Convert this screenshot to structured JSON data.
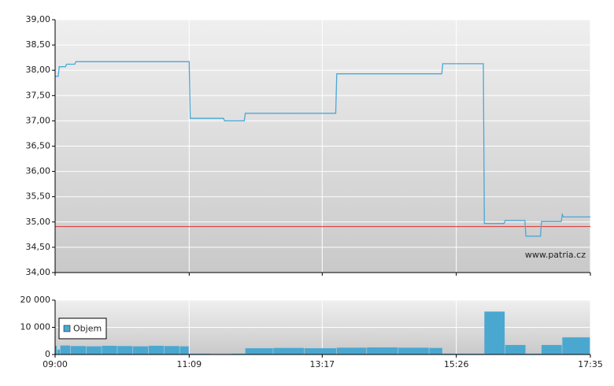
{
  "chart_data": [
    {
      "type": "line",
      "color": "#4aa8d8",
      "source": "www.patria.cz",
      "reference_line": 34.91,
      "reference_color": "#e03030",
      "x": [
        "09:00",
        "09:03",
        "09:04",
        "09:10",
        "09:11",
        "09:19",
        "09:20",
        "11:09",
        "11:10",
        "11:42",
        "11:43",
        "12:02",
        "12:03",
        "13:30",
        "13:31",
        "15:12",
        "15:13",
        "15:52",
        "15:53",
        "16:12",
        "16:13",
        "16:32",
        "16:33",
        "16:47",
        "16:48",
        "17:07",
        "17:08",
        "17:09",
        "17:35"
      ],
      "values": [
        37.88,
        37.88,
        38.07,
        38.07,
        38.12,
        38.12,
        38.17,
        38.17,
        37.05,
        37.05,
        37.0,
        37.0,
        37.15,
        37.15,
        37.93,
        37.93,
        38.13,
        38.13,
        34.97,
        34.97,
        35.03,
        35.03,
        34.72,
        34.72,
        35.01,
        35.01,
        35.15,
        35.1,
        35.1
      ],
      "xlim": [
        "09:00",
        "17:35"
      ],
      "ylim": [
        34,
        39
      ],
      "yticks": [
        {
          "value": 34,
          "label": "34,00"
        },
        {
          "value": 34.5,
          "label": "34,50"
        },
        {
          "value": 35,
          "label": "35,00"
        },
        {
          "value": 35.5,
          "label": "35,50"
        },
        {
          "value": 36,
          "label": "36,00"
        },
        {
          "value": 36.5,
          "label": "36,50"
        },
        {
          "value": 37,
          "label": "37,00"
        },
        {
          "value": 37.5,
          "label": "37,50"
        },
        {
          "value": 38,
          "label": "38,00"
        },
        {
          "value": 38.5,
          "label": "38,50"
        },
        {
          "value": 39,
          "label": "39,00"
        }
      ],
      "grid": true
    },
    {
      "type": "bar",
      "legend": "lower-left",
      "x": [
        "09:00",
        "09:02",
        "09:05",
        "09:15",
        "09:30",
        "09:45",
        "10:00",
        "10:15",
        "10:30",
        "10:45",
        "11:00",
        "11:09",
        "11:30",
        "11:50",
        "12:03",
        "12:30",
        "13:00",
        "13:31",
        "14:00",
        "14:30",
        "15:00",
        "15:13",
        "15:53",
        "16:13",
        "16:33",
        "16:48",
        "17:08"
      ],
      "series": [
        {
          "name": "Objem",
          "color": "#4aa8d0",
          "values": [
            3200,
            1800,
            3300,
            3100,
            3000,
            3200,
            3100,
            3000,
            3200,
            3100,
            3000,
            300,
            200,
            300,
            2300,
            2400,
            2300,
            2500,
            2600,
            2500,
            2400,
            300,
            15800,
            3500,
            300,
            3500,
            6300
          ]
        }
      ],
      "xlim": [
        "09:00",
        "17:35"
      ],
      "xticks": [
        "09:00",
        "11:09",
        "13:17",
        "15:26",
        "17:35"
      ],
      "ylim": [
        0,
        20000
      ],
      "yticks": [
        0,
        {
          "value": 10000,
          "label": "10 000"
        },
        {
          "value": 20000,
          "label": "20 000"
        }
      ],
      "grid": true
    }
  ]
}
